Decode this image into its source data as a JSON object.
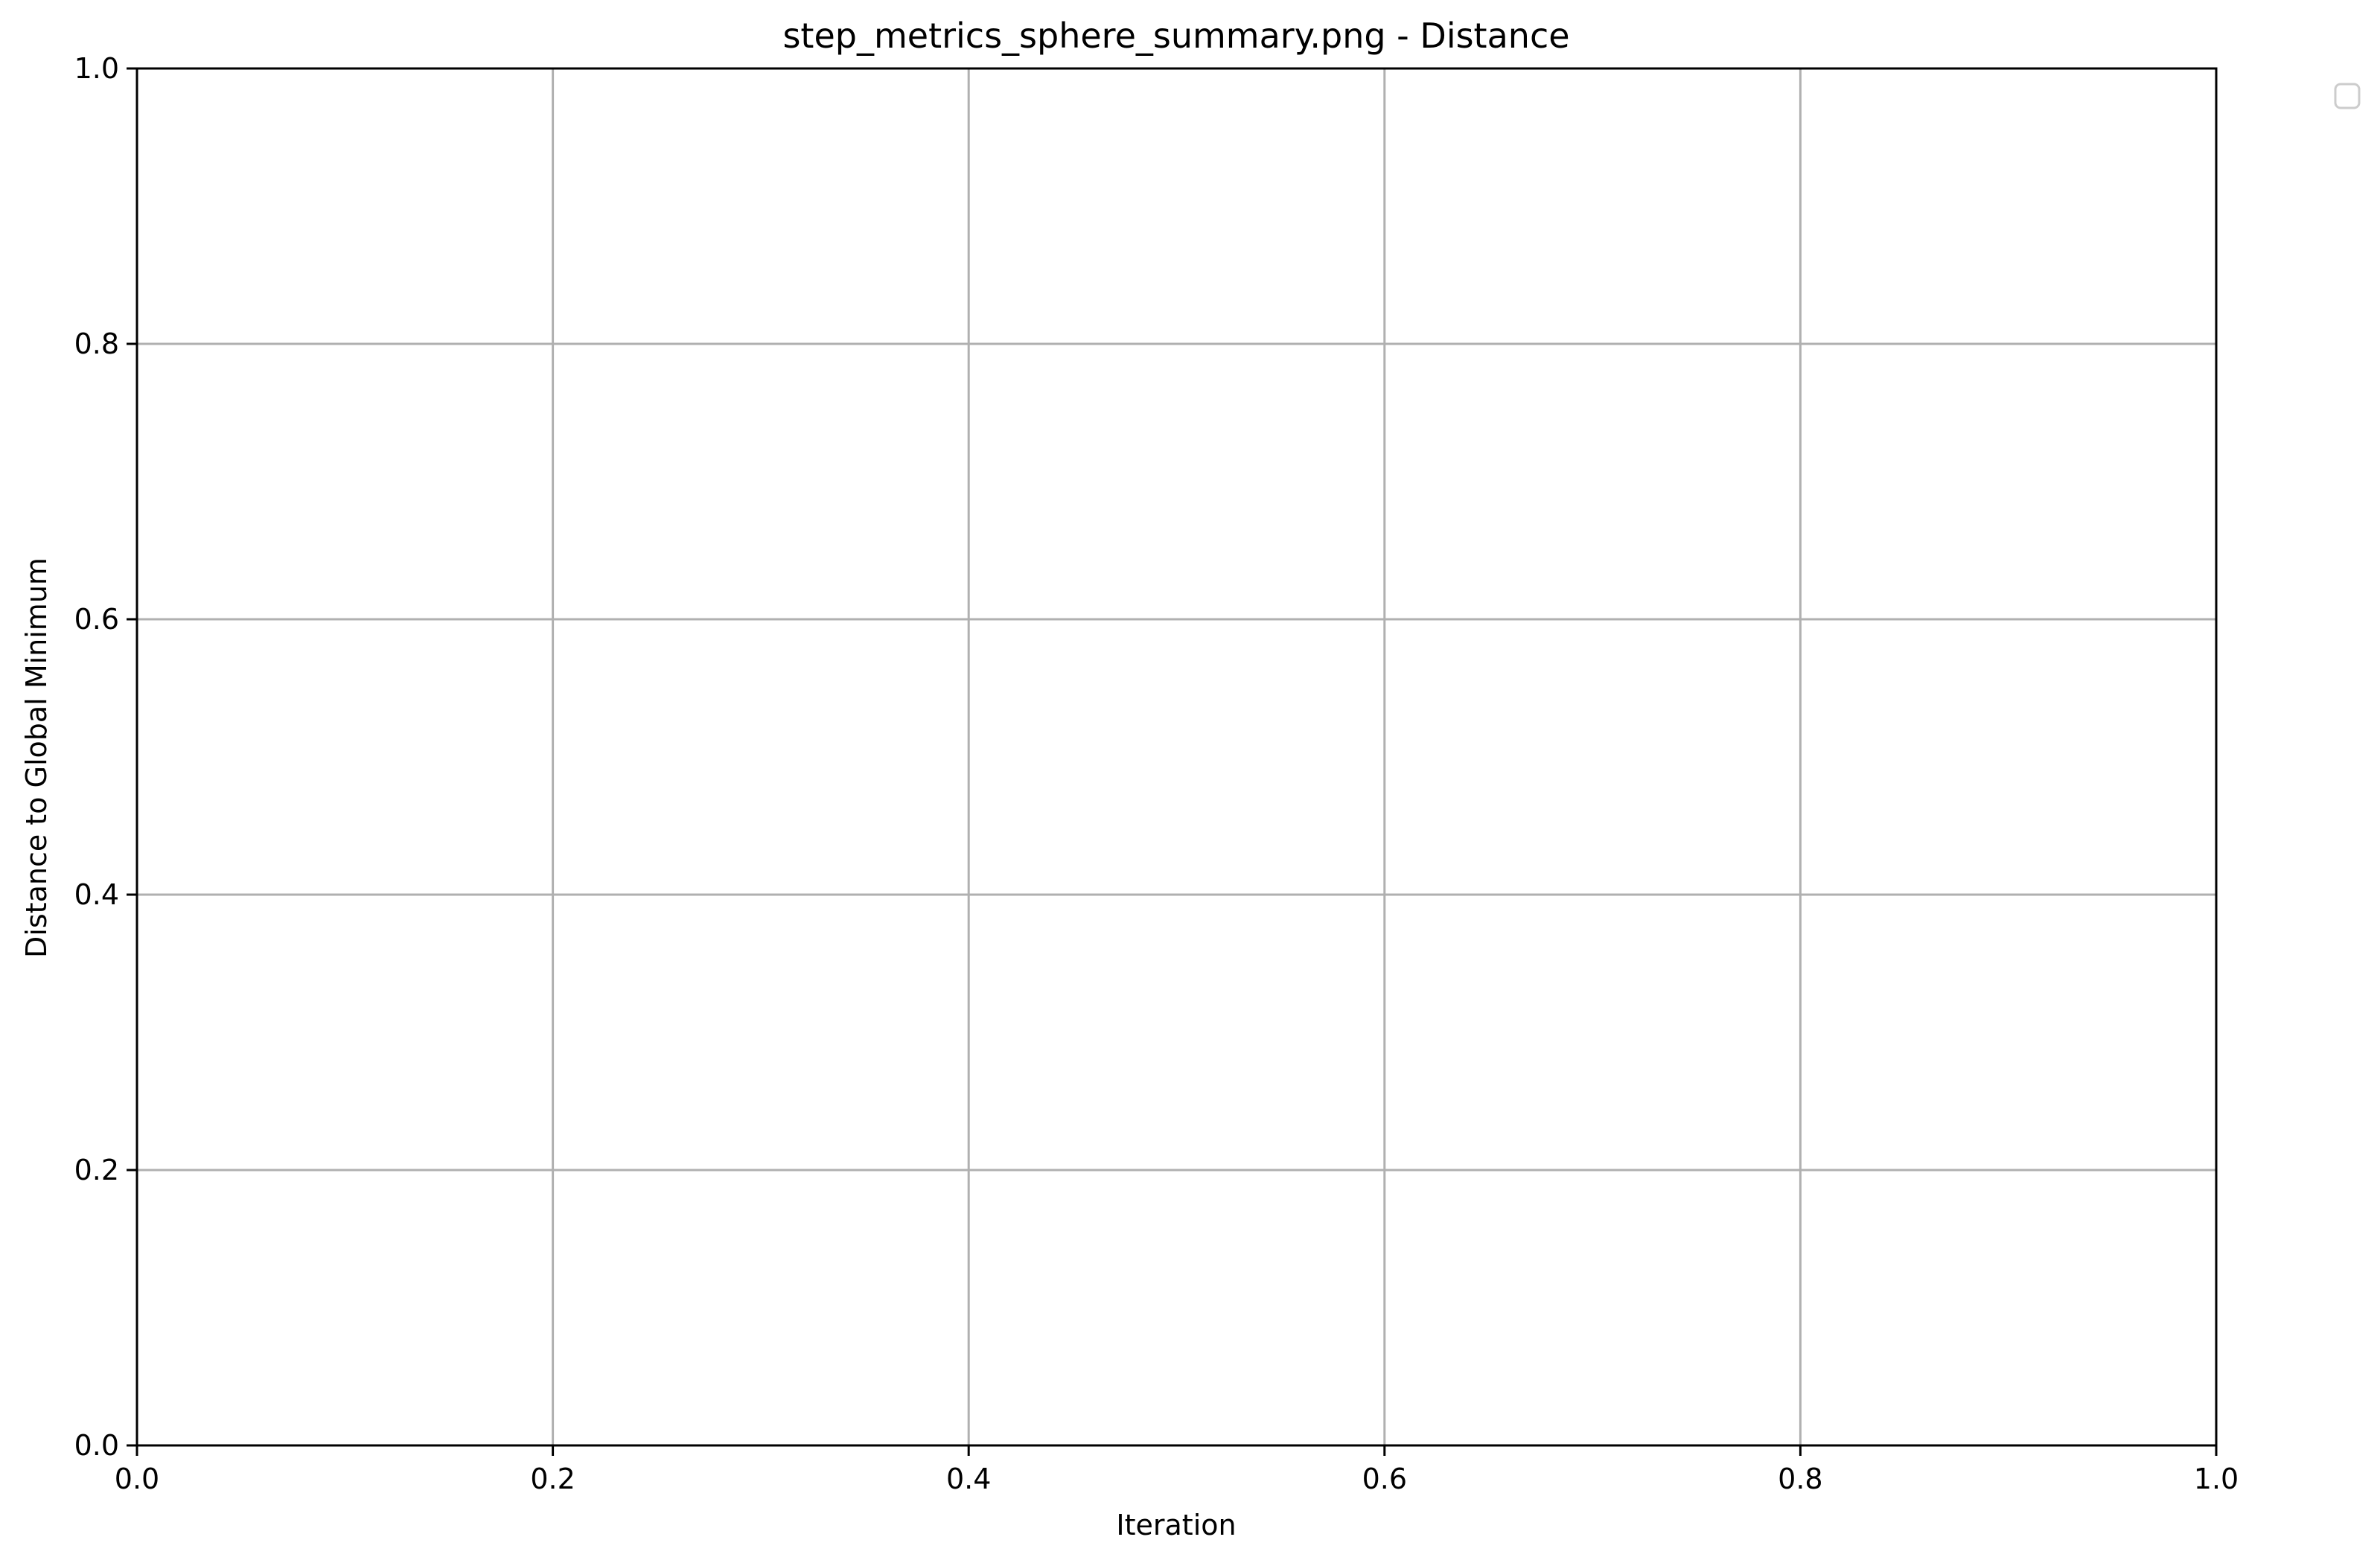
{
  "chart_data": {
    "type": "line",
    "title": "step_metrics_sphere_summary.png - Distance",
    "xlabel": "Iteration",
    "ylabel": "Distance to Global Minimum",
    "xlim": [
      0.0,
      1.0
    ],
    "ylim": [
      0.0,
      1.0
    ],
    "x_ticks": [
      "0.0",
      "0.2",
      "0.4",
      "0.6",
      "0.8",
      "1.0"
    ],
    "y_ticks": [
      "0.0",
      "0.2",
      "0.4",
      "0.6",
      "0.8",
      "1.0"
    ],
    "grid": true,
    "legend": "upper-right-outside-empty",
    "series": []
  },
  "colors": {
    "grid": "#b0b0b0",
    "axes": "#000000",
    "legend_border": "#cccccc",
    "background": "#ffffff"
  }
}
